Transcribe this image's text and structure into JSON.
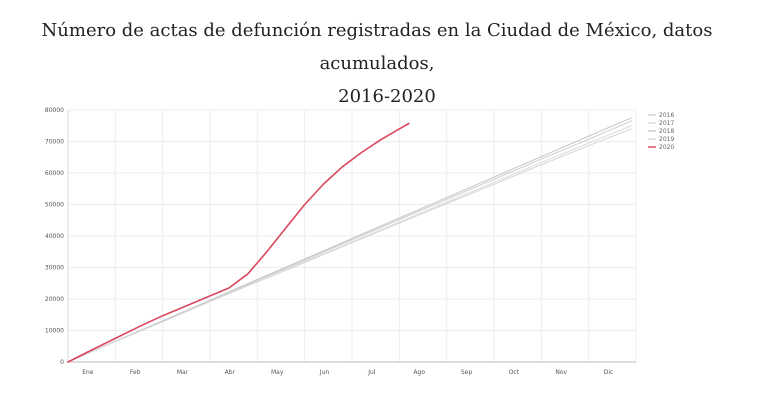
{
  "title_line1": "Número de actas de defunción registradas en la Ciudad de México, datos acumulados,",
  "title_line2": "2016-2020",
  "chart_data": {
    "type": "line",
    "title": "Número de actas de defunción registradas en la Ciudad de México, datos acumulados, 2016-2020",
    "xlabel": "",
    "ylabel": "",
    "x_ticks": [
      "Ene",
      "Feb",
      "Mar",
      "Abr",
      "May",
      "Jun",
      "Jul",
      "Ago",
      "Sep",
      "Oct",
      "Nov",
      "Dic"
    ],
    "xlim": [
      0,
      12
    ],
    "ylim": [
      0,
      80000
    ],
    "y_ticks": [
      0,
      10000,
      20000,
      30000,
      40000,
      50000,
      60000,
      70000,
      80000
    ],
    "grid": true,
    "legend_position": "right",
    "series": [
      {
        "name": "2016",
        "color": "#d0d0d0",
        "x": [
          0,
          1,
          2,
          3,
          4,
          5,
          6,
          7,
          8,
          9,
          10,
          11,
          11.9
        ],
        "y": [
          0,
          6600,
          13000,
          19500,
          25900,
          32300,
          38800,
          45200,
          51600,
          58000,
          64400,
          70700,
          76500
        ]
      },
      {
        "name": "2017",
        "color": "#dcdcdc",
        "x": [
          0,
          1,
          2,
          3,
          4,
          5,
          6,
          7,
          8,
          9,
          10,
          11,
          11.9
        ],
        "y": [
          0,
          6500,
          12900,
          19300,
          25500,
          31800,
          38100,
          44400,
          50700,
          57000,
          63300,
          69500,
          75000
        ]
      },
      {
        "name": "2018",
        "color": "#c8c8c8",
        "x": [
          0,
          1,
          2,
          3,
          4,
          5,
          6,
          7,
          8,
          9,
          10,
          11,
          11.9
        ],
        "y": [
          0,
          6600,
          13100,
          19600,
          26200,
          32700,
          39200,
          45700,
          52200,
          58700,
          65200,
          71700,
          77500
        ]
      },
      {
        "name": "2019",
        "color": "#d8d8d8",
        "x": [
          0,
          1,
          2,
          3,
          4,
          5,
          6,
          7,
          8,
          9,
          10,
          11,
          11.9
        ],
        "y": [
          0,
          6500,
          12800,
          19200,
          25400,
          31600,
          37900,
          44100,
          50300,
          56400,
          62600,
          68700,
          74000
        ]
      },
      {
        "name": "2020",
        "color": "#d9475e",
        "x": [
          0,
          0.5,
          1,
          1.5,
          2,
          2.5,
          3,
          3.4,
          3.8,
          4.2,
          4.6,
          5,
          5.4,
          5.8,
          6.2,
          6.6,
          7.2
        ],
        "y": [
          0,
          3800,
          7500,
          11200,
          14700,
          17800,
          21000,
          23500,
          28000,
          35000,
          42500,
          50000,
          56500,
          62000,
          66500,
          70500,
          75700
        ]
      }
    ]
  }
}
